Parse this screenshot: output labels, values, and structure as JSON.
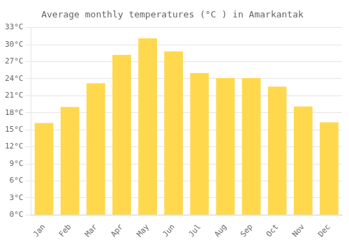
{
  "chart_data": {
    "type": "bar",
    "title": "Average monthly temperatures (°C ) in Amarkantak",
    "categories": [
      "Jan",
      "Feb",
      "Mar",
      "Apr",
      "May",
      "Jun",
      "Jul",
      "Aug",
      "Sep",
      "Oct",
      "Nov",
      "Dec"
    ],
    "values": [
      16.2,
      19.0,
      23.2,
      28.2,
      31.1,
      28.8,
      25.0,
      24.1,
      24.1,
      22.6,
      19.1,
      16.3
    ],
    "color": "#FFD84D",
    "ylim": [
      0,
      33
    ],
    "yticks": [
      {
        "value": 0,
        "label": "0°C"
      },
      {
        "value": 3,
        "label": "3°C"
      },
      {
        "value": 6,
        "label": "6°C"
      },
      {
        "value": 9,
        "label": "9°C"
      },
      {
        "value": 12,
        "label": "12°C"
      },
      {
        "value": 15,
        "label": "15°C"
      },
      {
        "value": 18,
        "label": "18°C"
      },
      {
        "value": 21,
        "label": "21°C"
      },
      {
        "value": 24,
        "label": "24°C"
      },
      {
        "value": 27,
        "label": "27°C"
      },
      {
        "value": 30,
        "label": "30°C"
      },
      {
        "value": 33,
        "label": "33°C"
      }
    ],
    "grid": true
  }
}
